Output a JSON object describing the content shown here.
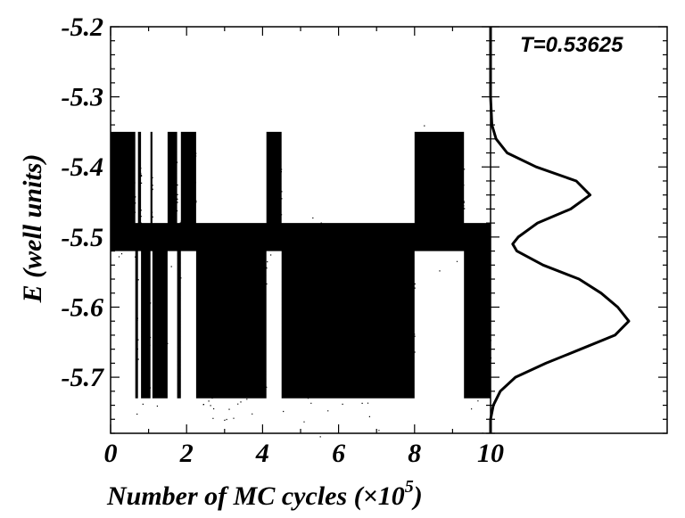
{
  "chart_data": [
    {
      "type": "scatter",
      "title": "",
      "xlabel": "Number of MC cycles (×10",
      "xlabel_sup": "5",
      "xlabel_end": ")",
      "ylabel": "E (well units)",
      "xlim": [
        0,
        10
      ],
      "ylim": [
        -5.78,
        -5.2
      ],
      "x_ticks": [
        "0",
        "2",
        "4",
        "6",
        "8",
        "10"
      ],
      "y_ticks": [
        "-5.2",
        "-5.3",
        "-5.4",
        "-5.5",
        "-5.6",
        "-5.7"
      ],
      "grid": false,
      "series": [
        {
          "color": "#000000",
          "segments": [
            {
              "x": [
                0.0,
                0.65
              ],
              "state": "high"
            },
            {
              "x": [
                0.65,
                0.72
              ],
              "state": "low"
            },
            {
              "x": [
                0.72,
                0.8
              ],
              "state": "high"
            },
            {
              "x": [
                0.8,
                1.05
              ],
              "state": "low"
            },
            {
              "x": [
                1.05,
                1.1
              ],
              "state": "high"
            },
            {
              "x": [
                1.1,
                1.5
              ],
              "state": "low"
            },
            {
              "x": [
                1.5,
                1.75
              ],
              "state": "high"
            },
            {
              "x": [
                1.75,
                1.85
              ],
              "state": "low"
            },
            {
              "x": [
                1.85,
                2.25
              ],
              "state": "high"
            },
            {
              "x": [
                2.25,
                4.1
              ],
              "state": "low"
            },
            {
              "x": [
                4.1,
                4.5
              ],
              "state": "high"
            },
            {
              "x": [
                4.5,
                8.0
              ],
              "state": "low"
            },
            {
              "x": [
                8.0,
                9.3
              ],
              "state": "high"
            },
            {
              "x": [
                9.3,
                10.0
              ],
              "state": "low"
            }
          ],
          "states": {
            "high": {
              "mean": -5.44,
              "range": [
                -5.52,
                -5.35
              ]
            },
            "low": {
              "mean": -5.62,
              "range": [
                -5.73,
                -5.48
              ]
            }
          }
        }
      ]
    },
    {
      "type": "line",
      "annotation": "T=0.53625",
      "ylim": [
        -5.78,
        -5.2
      ],
      "series": [
        {
          "color": "#000000",
          "points": [
            [
              -5.2,
              0.0
            ],
            [
              -5.3,
              0.0
            ],
            [
              -5.34,
              0.01
            ],
            [
              -5.36,
              0.04
            ],
            [
              -5.38,
              0.12
            ],
            [
              -5.4,
              0.33
            ],
            [
              -5.42,
              0.62
            ],
            [
              -5.44,
              0.72
            ],
            [
              -5.46,
              0.58
            ],
            [
              -5.48,
              0.34
            ],
            [
              -5.5,
              0.2
            ],
            [
              -5.51,
              0.16
            ],
            [
              -5.52,
              0.19
            ],
            [
              -5.54,
              0.38
            ],
            [
              -5.56,
              0.64
            ],
            [
              -5.58,
              0.8
            ],
            [
              -5.6,
              0.92
            ],
            [
              -5.62,
              1.0
            ],
            [
              -5.64,
              0.9
            ],
            [
              -5.66,
              0.65
            ],
            [
              -5.68,
              0.4
            ],
            [
              -5.7,
              0.18
            ],
            [
              -5.72,
              0.07
            ],
            [
              -5.74,
              0.02
            ],
            [
              -5.76,
              0.0
            ],
            [
              -5.78,
              0.0
            ]
          ]
        }
      ]
    }
  ]
}
